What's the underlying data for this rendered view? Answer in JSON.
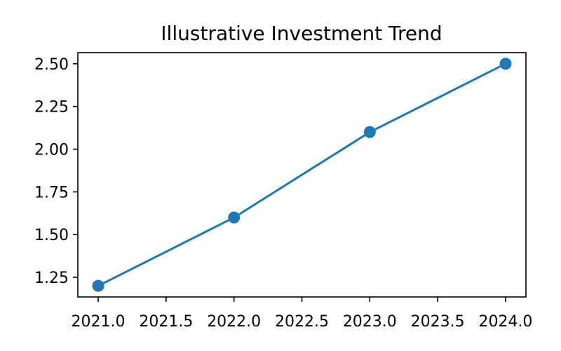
{
  "chart_data": {
    "type": "line",
    "title": "Illustrative Investment Trend",
    "xlabel": "",
    "ylabel": "",
    "x": [
      2021.0,
      2022.0,
      2023.0,
      2024.0
    ],
    "series": [
      {
        "values": [
          1.2,
          1.6,
          2.1,
          2.5
        ],
        "color": "#1f77b4",
        "marker": "circle"
      }
    ],
    "xlim": [
      2020.85,
      2024.15
    ],
    "ylim": [
      1.135,
      2.565
    ],
    "x_ticks": [
      2021.0,
      2021.5,
      2022.0,
      2022.5,
      2023.0,
      2023.5,
      2024.0
    ],
    "x_tick_labels": [
      "2021.0",
      "2021.5",
      "2022.0",
      "2022.5",
      "2023.0",
      "2023.5",
      "2024.0"
    ],
    "y_ticks": [
      1.25,
      1.5,
      1.75,
      2.0,
      2.25,
      2.5
    ],
    "y_tick_labels": [
      "1.25",
      "1.50",
      "1.75",
      "2.00",
      "2.25",
      "2.50"
    ],
    "grid": false,
    "legend": "none"
  }
}
